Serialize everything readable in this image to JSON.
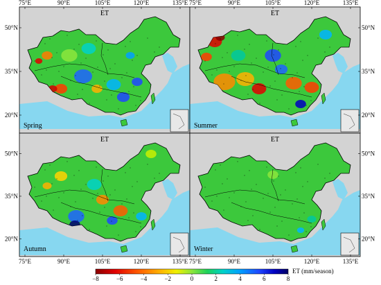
{
  "panels": [
    {
      "id": "spring",
      "title": "ET",
      "season": "Spring",
      "lon_labels": [
        "75°E",
        "90°E",
        "105°E",
        "120°E",
        "135°E"
      ],
      "lat_labels": [
        "50°N",
        "35°N",
        "20°N"
      ],
      "lat_side": "left",
      "lon_side": "top"
    },
    {
      "id": "summer",
      "title": "ET",
      "season": "Summer",
      "lon_labels": [
        "75°E",
        "90°E",
        "105°E",
        "120°E",
        "135°E"
      ],
      "lat_labels": [
        "50°N",
        "35°N",
        "20°N"
      ],
      "lat_side": "right",
      "lon_side": "top"
    },
    {
      "id": "autumn",
      "title": "ET",
      "season": "Autumn",
      "lon_labels": [
        "75°E",
        "90°E",
        "105°E",
        "120°E",
        "135°E"
      ],
      "lat_labels": [
        "50°N",
        "35°N",
        "20°N"
      ],
      "lat_side": "left",
      "lon_side": "bottom"
    },
    {
      "id": "winter",
      "title": "ET",
      "season": "Winter",
      "lon_labels": [
        "75°E",
        "90°E",
        "105°E",
        "120°E",
        "135°E"
      ],
      "lat_labels": [
        "50°N",
        "35°N",
        "20°N"
      ],
      "lat_side": "right",
      "lon_side": "bottom"
    }
  ],
  "colorbar": {
    "ticks": [
      "−8",
      "−6",
      "−4",
      "−2",
      "0",
      "2",
      "4",
      "6",
      "8"
    ],
    "label": "ET (mm/season)",
    "colors": [
      "#7a0000",
      "#d40000",
      "#ff3b00",
      "#ff8a00",
      "#ffd400",
      "#c8f000",
      "#3bd43b",
      "#00c8a0",
      "#00b4ff",
      "#1f64ff",
      "#0000c8",
      "#000070"
    ]
  },
  "colors": {
    "background": "#d3d3d3",
    "ocean": "#87d7f0",
    "land_base": "#3cc83c"
  }
}
